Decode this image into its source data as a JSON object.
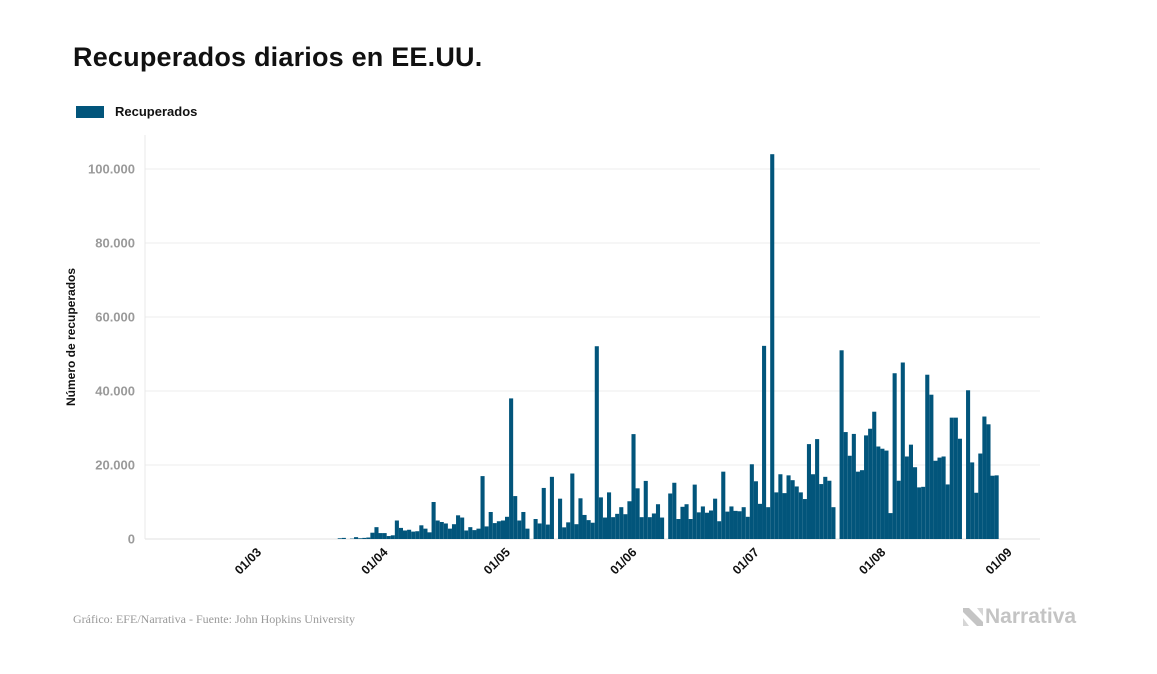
{
  "chart_data": {
    "type": "bar",
    "title": "Recuperados diarios en EE.UU.",
    "xlabel": "",
    "ylabel": "Número de recuperados",
    "legend": [
      {
        "name": "Recuperados",
        "color": "#02557b"
      }
    ],
    "legend_position": "top-left",
    "x_start": "15/02",
    "x_ticks": [
      "01/03",
      "01/04",
      "01/05",
      "01/06",
      "01/07",
      "01/08",
      "01/09"
    ],
    "y_ticks": [
      "0",
      "20.000",
      "40.000",
      "60.000",
      "80.000",
      "100.000"
    ],
    "y_tick_values": [
      0,
      20000,
      40000,
      60000,
      80000,
      100000
    ],
    "ylim": [
      0,
      109000
    ],
    "grid": true,
    "series": [
      {
        "name": "Recuperados",
        "color": "#02557b",
        "values": [
          0,
          0,
          0,
          0,
          0,
          0,
          0,
          0,
          0,
          0,
          0,
          0,
          0,
          0,
          0,
          0,
          0,
          0,
          0,
          0,
          0,
          0,
          0,
          0,
          0,
          0,
          0,
          0,
          0,
          0,
          0,
          0,
          0,
          0,
          0,
          0,
          0,
          200,
          300,
          0,
          100,
          500,
          200,
          300,
          400,
          1700,
          3200,
          1600,
          1600,
          800,
          1000,
          5000,
          3000,
          2300,
          2500,
          2000,
          2100,
          3700,
          2800,
          1800,
          10000,
          5000,
          4600,
          4200,
          2800,
          4000,
          6400,
          5800,
          2300,
          3200,
          2400,
          2800,
          17000,
          3400,
          7300,
          4300,
          4800,
          5000,
          6000,
          38000,
          11600,
          5000,
          7300,
          2800,
          0,
          5400,
          4200,
          13800,
          3900,
          16800,
          0,
          10900,
          3150,
          4500,
          17700,
          4000,
          11000,
          6500,
          5100,
          4400,
          52100,
          11250,
          5800,
          12600,
          5900,
          6800,
          8600,
          6700,
          10200,
          28350,
          13700,
          5900,
          15700,
          5900,
          6900,
          9400,
          5800,
          0,
          12300,
          15200,
          5400,
          8700,
          9400,
          5400,
          14700,
          7200,
          8800,
          7100,
          7700,
          10900,
          4800,
          18200,
          7400,
          8800,
          7600,
          7500,
          8600,
          6000,
          20200,
          15600,
          9500,
          52200,
          8600,
          104000,
          12600,
          17500,
          12400,
          17200,
          15900,
          14200,
          12600,
          10800,
          25650,
          17500,
          27000,
          14850,
          16800,
          15750,
          8600,
          0,
          51000,
          28900,
          22500,
          28400,
          18200,
          18600,
          28000,
          29800,
          34400,
          25000,
          24400,
          23900,
          7000,
          44800,
          15750,
          47700,
          22300,
          25500,
          19400,
          13950,
          14100,
          44400,
          39000,
          21150,
          22000,
          22300,
          14750,
          32800,
          32800,
          27100,
          0,
          40200,
          20700,
          12500,
          23100,
          33100,
          31000,
          17100,
          17200
        ]
      }
    ]
  },
  "source": "Gráfico: EFE/Narrativa - Fuente: John Hopkins University",
  "logo": "Narrativa"
}
